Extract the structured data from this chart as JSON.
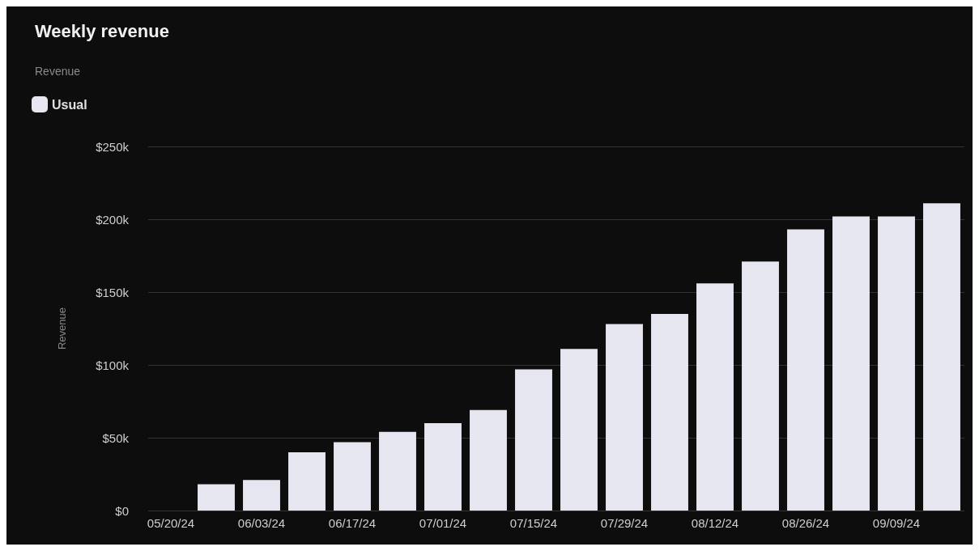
{
  "chart_data": {
    "type": "bar",
    "title": "Weekly revenue",
    "legend_title": "Revenue",
    "ylabel": "Revenue",
    "categories": [
      "05/20/24",
      null,
      "06/03/24",
      null,
      "06/17/24",
      null,
      "07/01/24",
      null,
      "07/15/24",
      null,
      "07/29/24",
      null,
      "08/12/24",
      null,
      "08/26/24",
      null,
      "09/09/24",
      null
    ],
    "series": [
      {
        "name": "Usual",
        "color": "#e6e6f0",
        "values": [
          null,
          18,
          21,
          40,
          47,
          54,
          60,
          69,
          97,
          111,
          128,
          135,
          156,
          171,
          193,
          202,
          202,
          211
        ]
      }
    ],
    "ylim": [
      0,
      250
    ],
    "yticks": [
      {
        "value": 0,
        "label": "$0"
      },
      {
        "value": 50,
        "label": "$50k"
      },
      {
        "value": 100,
        "label": "$100k"
      },
      {
        "value": 150,
        "label": "$150k"
      },
      {
        "value": 200,
        "label": "$200k"
      },
      {
        "value": 250,
        "label": "$250k"
      }
    ],
    "grid": "y",
    "legend": "top left"
  }
}
